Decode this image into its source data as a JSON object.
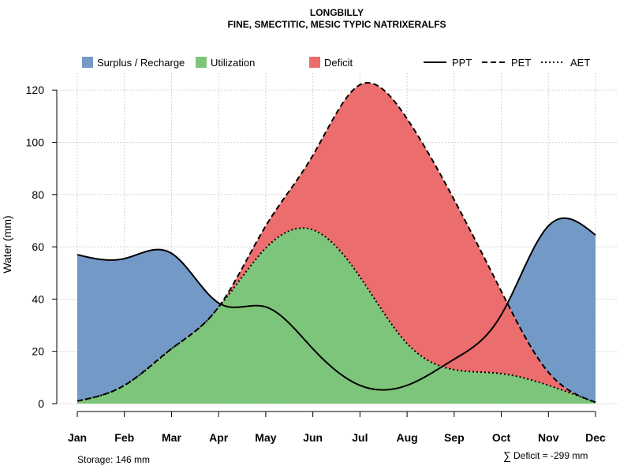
{
  "chart_data": {
    "type": "area",
    "title": "LONGBILLY",
    "subtitle": "FINE, SMECTITIC, MESIC TYPIC NATRIXERALFS",
    "xlabel": "",
    "ylabel": "Water (mm)",
    "categories": [
      "Jan",
      "Feb",
      "Mar",
      "Apr",
      "May",
      "Jun",
      "Jul",
      "Aug",
      "Sep",
      "Oct",
      "Nov",
      "Dec"
    ],
    "ylim": [
      0,
      127
    ],
    "yticks": [
      0,
      20,
      40,
      60,
      80,
      100,
      120
    ],
    "grid": true,
    "series": [
      {
        "name": "PPT",
        "style": "solid",
        "values": [
          57,
          55.5,
          57.5,
          38.5,
          37,
          21,
          7,
          7,
          17,
          34,
          68,
          64.5
        ]
      },
      {
        "name": "PET",
        "style": "dashed",
        "values": [
          1,
          7,
          21,
          37,
          68,
          95,
          122,
          109,
          78,
          43,
          12,
          0.5
        ]
      },
      {
        "name": "AET",
        "style": "dotted",
        "values": [
          1,
          7,
          21,
          37,
          59.5,
          66.5,
          48.5,
          23,
          13,
          11.5,
          7,
          0.5
        ]
      }
    ],
    "legend": [
      {
        "label": "Surplus / Recharge",
        "kind": "patch",
        "color": "#7399c6"
      },
      {
        "label": "Utilization",
        "kind": "patch",
        "color": "#7dc57a"
      },
      {
        "label": "Deficit",
        "kind": "patch",
        "color": "#eb6d6d"
      },
      {
        "label": "PPT",
        "kind": "line",
        "style": "solid"
      },
      {
        "label": "PET",
        "kind": "line",
        "style": "dashed"
      },
      {
        "label": "AET",
        "kind": "line",
        "style": "dotted"
      }
    ],
    "legend_placement": "top",
    "colors": {
      "surplus": "#7399c6",
      "utilization": "#7dc57a",
      "deficit": "#eb6d6d",
      "line": "#000000",
      "grid": "#d3d3d3"
    }
  },
  "footer": {
    "storage": "Storage: 146 mm",
    "deficit_symbol": "∑",
    "deficit": "Deficit = -299 mm"
  }
}
